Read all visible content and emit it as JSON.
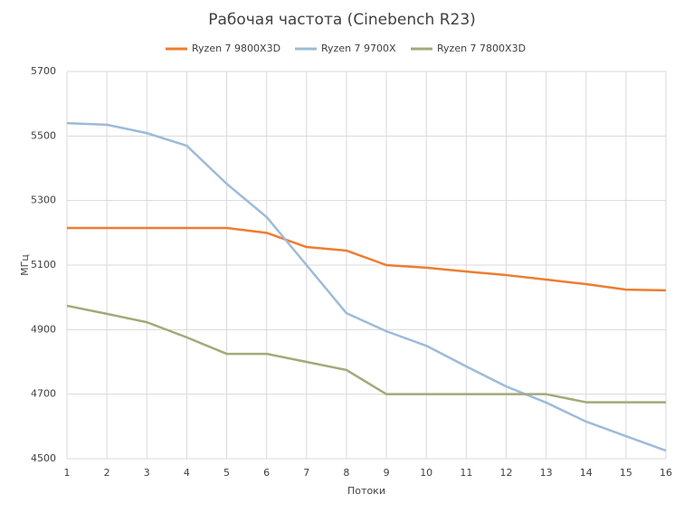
{
  "chart_data": {
    "type": "line",
    "title": "Рабочая частота (Cinebench R23)",
    "x_label": "Потоки",
    "y_label": "МГц",
    "x": [
      1,
      2,
      3,
      4,
      5,
      6,
      7,
      8,
      9,
      10,
      11,
      12,
      13,
      14,
      15,
      16
    ],
    "series": [
      {
        "name": "Ryzen 7 9800X3D",
        "color": "#ed7d31",
        "values": [
          5215,
          5215,
          5215,
          5215,
          5215,
          5200,
          5156,
          5145,
          5100,
          5092,
          5080,
          5069,
          5055,
          5041,
          5024,
          5022
        ]
      },
      {
        "name": "Ryzen 7 9700X",
        "color": "#9dbbd8",
        "values": [
          5540,
          5535,
          5509,
          5470,
          5352,
          5249,
          5100,
          4951,
          4895,
          4850,
          4786,
          4724,
          4674,
          4615,
          4570,
          4525
        ]
      },
      {
        "name": "Ryzen 7 7800X3D",
        "color": "#a5a878",
        "values": [
          4974,
          4949,
          4923,
          4876,
          4825,
          4825,
          4800,
          4775,
          4700,
          4700,
          4700,
          4700,
          4700,
          4675,
          4675,
          4675
        ]
      }
    ],
    "xlim": [
      1,
      16
    ],
    "xticks": [
      1,
      2,
      3,
      4,
      5,
      6,
      7,
      8,
      9,
      10,
      11,
      12,
      13,
      14,
      15,
      16
    ],
    "ylim": [
      4500,
      5700
    ],
    "yticks": [
      4500,
      4700,
      4900,
      5100,
      5300,
      5500,
      5700
    ],
    "grid": true,
    "legend": "top"
  }
}
